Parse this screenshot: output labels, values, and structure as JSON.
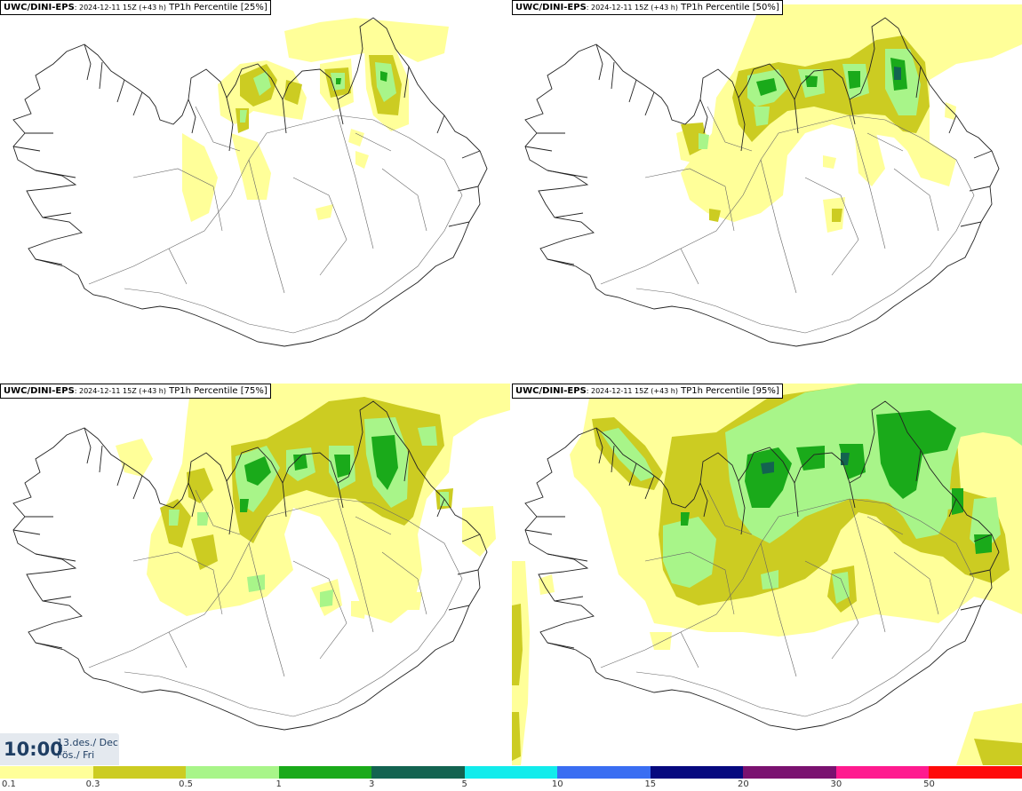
{
  "panels": [
    {
      "model": "UWC/DINI-EPS",
      "run": ": 2024-12-11 15Z (+43 h)",
      "field": " TP1h Percentile [25%]"
    },
    {
      "model": "UWC/DINI-EPS",
      "run": ": 2024-12-11 15Z (+43 h)",
      "field": " TP1h Percentile [50%]"
    },
    {
      "model": "UWC/DINI-EPS",
      "run": ": 2024-12-11 15Z (+43 h)",
      "field": " TP1h Percentile [75%]"
    },
    {
      "model": "UWC/DINI-EPS",
      "run": ": 2024-12-11 15Z (+43 h)",
      "field": " TP1h Percentile [95%]"
    }
  ],
  "valid_time": {
    "time": "10:00",
    "date_line1": "13.des./ Dec",
    "date_line2": "Fös./ Fri"
  },
  "legend": {
    "colors": [
      "#ffff99",
      "#cccc22",
      "#a8f589",
      "#1aaa1a",
      "#136350",
      "#12ecec",
      "#3a6ef2",
      "#06097f",
      "#7a1270",
      "#ff1b8f",
      "#ff0a0a"
    ],
    "labels": [
      "0.1",
      "0.3",
      "0.5",
      "1",
      "3",
      "5",
      "10",
      "15",
      "20",
      "30",
      "50"
    ]
  },
  "colors": {
    "band_01": "#ffff99",
    "band_03": "#cccc22",
    "band_05": "#a8f589",
    "band_1": "#1aaa1a",
    "band_3": "#136350",
    "coast": "#222222",
    "time_text": "#1f3e63",
    "time_bg": "#e4e9ef"
  }
}
